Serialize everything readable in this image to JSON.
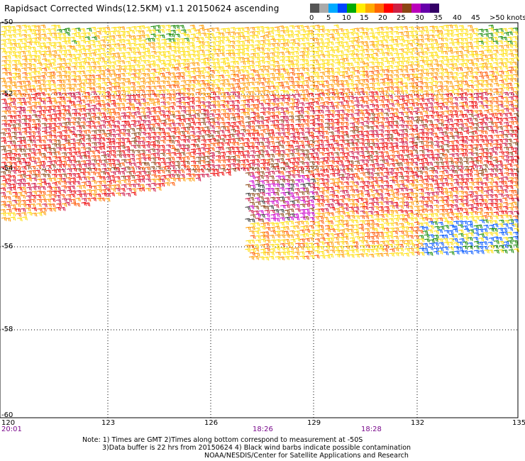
{
  "title": "Rapidsact Corrected Winds(12.5KM) v1.1 20150624 ascending",
  "legend": {
    "labels": [
      "0",
      "5",
      "10",
      "15",
      "20",
      "25",
      "30",
      "35",
      "40",
      "45",
      ">50 knots"
    ],
    "colors": [
      "#555555",
      "#aaaaaa",
      "#00aaff",
      "#0044ff",
      "#00aa00",
      "#ffee00",
      "#ffaa00",
      "#ff6600",
      "#ff0000",
      "#cc2244",
      "#8b4513",
      "#bb00bb",
      "#6600aa",
      "#330066"
    ]
  },
  "axes": {
    "lat_labels": [
      "-50",
      "-52",
      "-54",
      "-56",
      "-58",
      "-60"
    ],
    "lon_labels": [
      "120",
      "123",
      "126",
      "129",
      "132",
      "135"
    ]
  },
  "times": {
    "left": "20:01",
    "mid1": "18:26",
    "mid2": "18:28"
  },
  "notes": {
    "line1": "Note: 1) Times are GMT 2)Times along bottom correspond to measurement at -50S",
    "line2": "3)Data buffer is 22 hrs from 20150624 4) Black wind barbs indicate possible contamination",
    "line3": "NOAA/NESDIS/Center for Satellite Applications and Research"
  }
}
